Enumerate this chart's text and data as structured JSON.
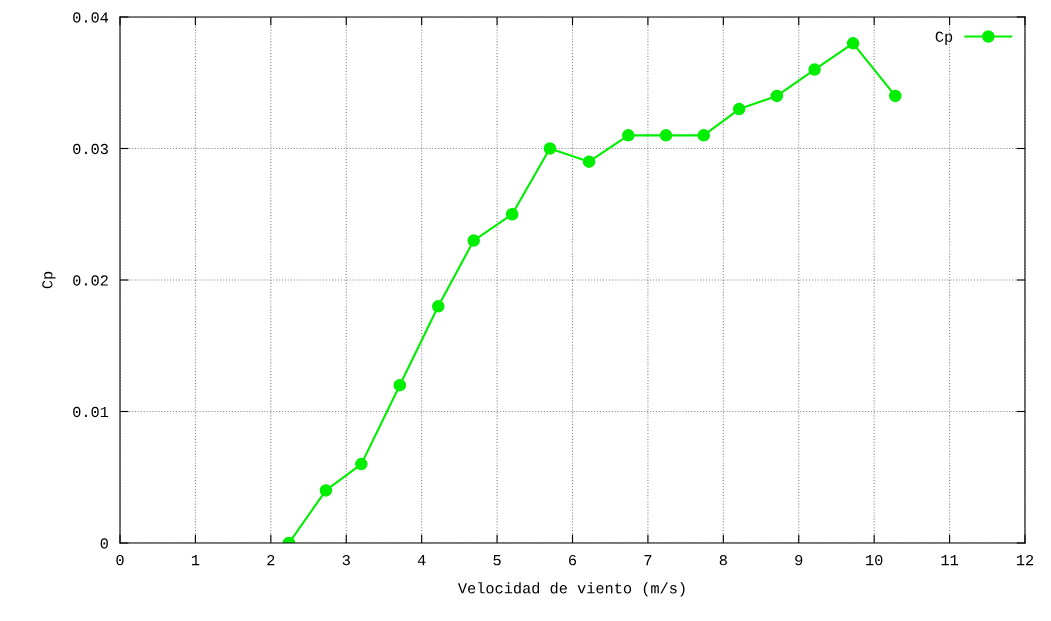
{
  "chart_data": {
    "type": "line",
    "xlabel": "Velocidad de viento (m/s)",
    "ylabel": "Cp",
    "x": [
      2.24,
      2.73,
      3.2,
      3.71,
      4.22,
      4.69,
      5.2,
      5.7,
      6.22,
      6.74,
      7.24,
      7.74,
      8.21,
      8.71,
      9.21,
      9.72,
      10.28
    ],
    "series": [
      {
        "name": "Cp",
        "color": "#00ee00",
        "values": [
          0,
          0.004,
          0.006,
          0.012,
          0.018,
          0.023,
          0.025,
          0.03,
          0.029,
          0.031,
          0.031,
          0.031,
          0.033,
          0.034,
          0.036,
          0.038,
          0.034
        ]
      }
    ],
    "xlim": [
      0,
      12
    ],
    "xticks": [
      0,
      1,
      2,
      3,
      4,
      5,
      6,
      7,
      8,
      9,
      10,
      11,
      12
    ],
    "ylim": [
      0,
      0.04
    ],
    "yticks": [
      0,
      0.01,
      0.02,
      0.03,
      0.04
    ],
    "grid": true,
    "legend": "top right",
    "marker": "circle",
    "line_style": "solid"
  }
}
